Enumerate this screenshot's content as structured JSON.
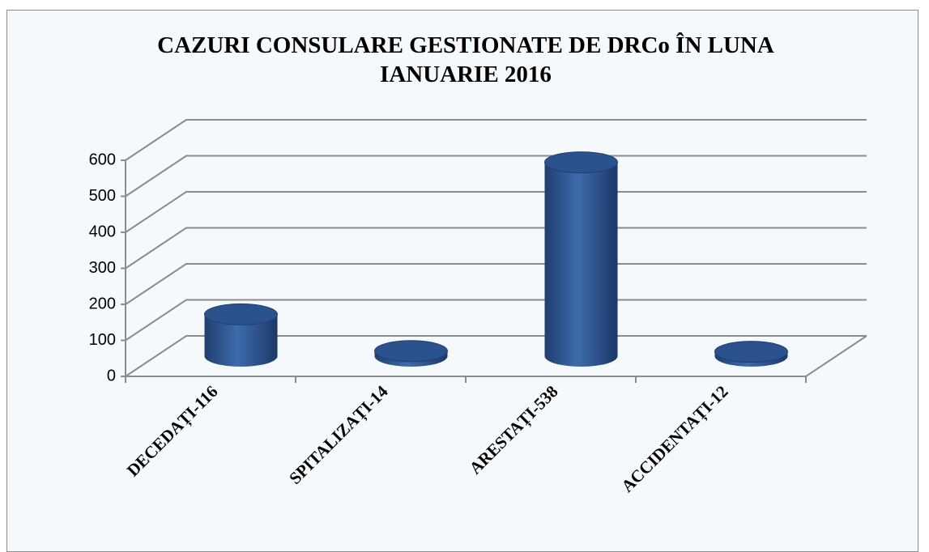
{
  "chart_data": {
    "type": "bar3d",
    "title": "CAZURI CONSULARE GESTIONATE DE DRCo ÎN LUNA IANUARIE 2016",
    "categories": [
      "DECEDAȚI-116",
      "SPITALIZAȚI-14",
      "ARESTAȚI-538",
      "ACCIDENTAȚI-12"
    ],
    "values": [
      116,
      14,
      538,
      12
    ],
    "color": "#2f5a96",
    "ylim": [
      0,
      600
    ],
    "yticks": [
      0,
      100,
      200,
      300,
      400,
      500,
      600
    ],
    "grid": true
  }
}
